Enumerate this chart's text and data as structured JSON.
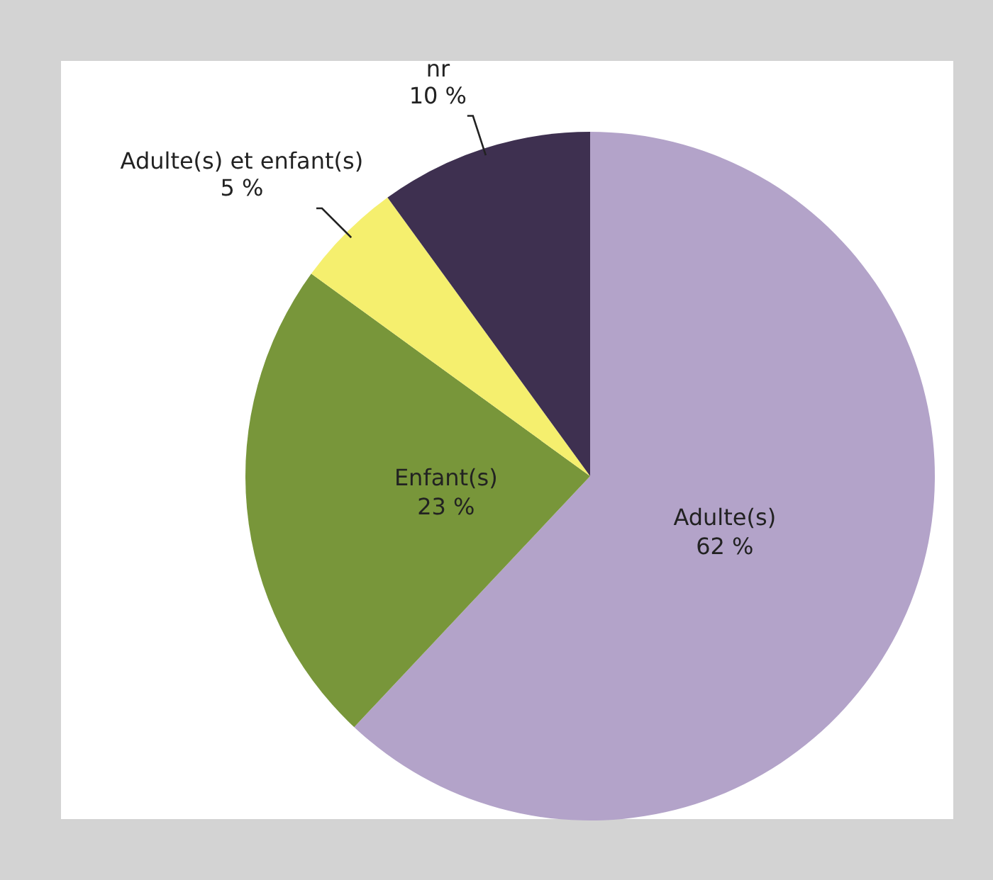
{
  "chart_data": {
    "type": "pie",
    "categories": [
      "Adulte(s)",
      "Enfant(s)",
      "Adulte(s) et enfant(s)",
      "nr"
    ],
    "values": [
      62,
      23,
      5,
      10
    ],
    "value_labels": [
      "62 %",
      "23 %",
      "5 %",
      "10 %"
    ],
    "colors": [
      "#b3a3c9",
      "#78963a",
      "#f5ef6e",
      "#3e3050"
    ]
  }
}
